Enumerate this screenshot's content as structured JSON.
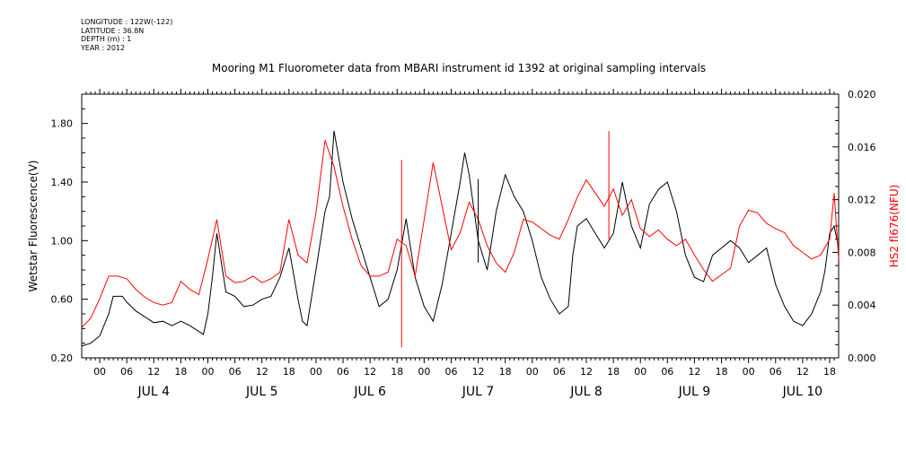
{
  "header": {
    "longitude": "LONGITUDE : 122W(-122)",
    "latitude": "LATITUDE : 36.8N",
    "depth": "DEPTH (m) : 1",
    "year": "YEAR : 2012"
  },
  "chart_data": {
    "type": "line",
    "title": "Mooring M1 Fluorometer data from MBARI instrument id 1392 at original sampling intervals",
    "xlabel": "",
    "ylabel": "Wetstar Fluorescence(V)",
    "y2label": "HS2 fl676(NFU)",
    "xlim": [
      "2012-07-03T20:00",
      "2012-07-10T20:00"
    ],
    "ylim": [
      0.2,
      2.0
    ],
    "y2lim": [
      0.0,
      0.02
    ],
    "y_ticks": [
      "0.20",
      "0.60",
      "1.00",
      "1.40",
      "1.80"
    ],
    "y2_ticks": [
      "0.000",
      "0.004",
      "0.008",
      "0.012",
      "0.016",
      "0.020"
    ],
    "x_hour_ticks": [
      "00",
      "06",
      "12",
      "18",
      "00",
      "06",
      "12",
      "18",
      "00",
      "06",
      "12",
      "18",
      "00",
      "06",
      "12",
      "18",
      "00",
      "06",
      "12",
      "18",
      "00",
      "06",
      "12",
      "18",
      "00",
      "06",
      "12",
      "18"
    ],
    "x_day_labels": [
      "JUL 4",
      "JUL 5",
      "JUL 6",
      "JUL 7",
      "JUL 8",
      "JUL 9",
      "JUL 10"
    ],
    "grid": false,
    "series_colors": [
      "#000000",
      "#ff0000"
    ],
    "series": [
      {
        "axis": "left",
        "x": [
          "2012-07-03T20:00",
          "2012-07-03T22:00",
          "2012-07-04T00:00",
          "2012-07-04T02:00",
          "2012-07-04T03:00",
          "2012-07-04T05:00",
          "2012-07-04T06:00",
          "2012-07-04T08:00",
          "2012-07-04T10:00",
          "2012-07-04T12:00",
          "2012-07-04T14:00",
          "2012-07-04T16:00",
          "2012-07-04T18:00",
          "2012-07-04T20:00",
          "2012-07-04T22:00",
          "2012-07-04T23:00",
          "2012-07-05T00:00",
          "2012-07-05T01:00",
          "2012-07-05T02:00",
          "2012-07-05T04:00",
          "2012-07-05T06:00",
          "2012-07-05T08:00",
          "2012-07-05T10:00",
          "2012-07-05T12:00",
          "2012-07-05T14:00",
          "2012-07-05T16:00",
          "2012-07-05T18:00",
          "2012-07-05T20:00",
          "2012-07-05T21:00",
          "2012-07-05T22:00",
          "2012-07-06T00:00",
          "2012-07-06T02:00",
          "2012-07-06T03:00",
          "2012-07-06T04:00",
          "2012-07-06T06:00",
          "2012-07-06T08:00",
          "2012-07-06T10:00",
          "2012-07-06T12:00",
          "2012-07-06T13:00",
          "2012-07-06T14:00",
          "2012-07-06T16:00",
          "2012-07-06T18:00",
          "2012-07-06T20:00",
          "2012-07-06T22:00",
          "2012-07-07T00:00",
          "2012-07-07T02:00",
          "2012-07-07T04:00",
          "2012-07-07T06:00",
          "2012-07-07T08:00",
          "2012-07-07T09:00",
          "2012-07-07T10:00",
          "2012-07-07T12:00",
          "2012-07-07T14:00",
          "2012-07-07T16:00",
          "2012-07-07T18:00",
          "2012-07-07T20:00",
          "2012-07-07T22:00",
          "2012-07-08T00:00",
          "2012-07-08T02:00",
          "2012-07-08T04:00",
          "2012-07-08T06:00",
          "2012-07-08T08:00",
          "2012-07-08T09:00",
          "2012-07-08T10:00",
          "2012-07-08T12:00",
          "2012-07-08T14:00",
          "2012-07-08T16:00",
          "2012-07-08T18:00",
          "2012-07-08T20:00",
          "2012-07-08T22:00",
          "2012-07-09T00:00",
          "2012-07-09T02:00",
          "2012-07-09T04:00",
          "2012-07-09T06:00",
          "2012-07-09T08:00",
          "2012-07-09T10:00",
          "2012-07-09T12:00",
          "2012-07-09T14:00",
          "2012-07-09T16:00",
          "2012-07-09T18:00",
          "2012-07-09T20:00",
          "2012-07-09T22:00",
          "2012-07-10T00:00",
          "2012-07-10T02:00",
          "2012-07-10T04:00",
          "2012-07-10T06:00",
          "2012-07-10T08:00",
          "2012-07-10T10:00",
          "2012-07-10T12:00",
          "2012-07-10T14:00",
          "2012-07-10T16:00",
          "2012-07-10T17:00",
          "2012-07-10T18:00",
          "2012-07-10T19:00",
          "2012-07-10T20:00"
        ],
        "values": [
          0.28,
          0.3,
          0.35,
          0.5,
          0.62,
          0.62,
          0.58,
          0.52,
          0.48,
          0.44,
          0.45,
          0.42,
          0.45,
          0.42,
          0.38,
          0.36,
          0.5,
          0.75,
          1.05,
          0.65,
          0.62,
          0.55,
          0.56,
          0.6,
          0.62,
          0.75,
          0.95,
          0.6,
          0.45,
          0.42,
          0.8,
          1.2,
          1.3,
          1.75,
          1.4,
          1.15,
          0.95,
          0.75,
          0.65,
          0.55,
          0.6,
          0.8,
          1.15,
          0.75,
          0.55,
          0.45,
          0.7,
          1.05,
          1.4,
          1.6,
          1.45,
          1.0,
          0.8,
          1.2,
          1.45,
          1.3,
          1.2,
          1.0,
          0.75,
          0.6,
          0.5,
          0.55,
          0.9,
          1.1,
          1.15,
          1.05,
          0.95,
          1.05,
          1.4,
          1.1,
          0.95,
          1.25,
          1.35,
          1.4,
          1.2,
          0.9,
          0.75,
          0.72,
          0.9,
          0.95,
          1.0,
          0.95,
          0.85,
          0.9,
          0.95,
          0.7,
          0.55,
          0.45,
          0.42,
          0.5,
          0.65,
          0.8,
          1.05,
          1.1,
          0.95
        ]
      },
      {
        "axis": "right",
        "x": [
          "2012-07-03T20:00",
          "2012-07-03T22:00",
          "2012-07-04T00:00",
          "2012-07-04T02:00",
          "2012-07-04T04:00",
          "2012-07-04T06:00",
          "2012-07-04T08:00",
          "2012-07-04T10:00",
          "2012-07-04T12:00",
          "2012-07-04T14:00",
          "2012-07-04T16:00",
          "2012-07-04T18:00",
          "2012-07-04T20:00",
          "2012-07-04T22:00",
          "2012-07-05T00:00",
          "2012-07-05T02:00",
          "2012-07-05T04:00",
          "2012-07-05T06:00",
          "2012-07-05T08:00",
          "2012-07-05T10:00",
          "2012-07-05T12:00",
          "2012-07-05T14:00",
          "2012-07-05T16:00",
          "2012-07-05T18:00",
          "2012-07-05T20:00",
          "2012-07-05T22:00",
          "2012-07-06T00:00",
          "2012-07-06T02:00",
          "2012-07-06T04:00",
          "2012-07-06T06:00",
          "2012-07-06T08:00",
          "2012-07-06T10:00",
          "2012-07-06T12:00",
          "2012-07-06T14:00",
          "2012-07-06T16:00",
          "2012-07-06T18:00",
          "2012-07-06T20:00",
          "2012-07-06T22:00",
          "2012-07-07T00:00",
          "2012-07-07T02:00",
          "2012-07-07T04:00",
          "2012-07-07T06:00",
          "2012-07-07T08:00",
          "2012-07-07T10:00",
          "2012-07-07T12:00",
          "2012-07-07T14:00",
          "2012-07-07T16:00",
          "2012-07-07T18:00",
          "2012-07-07T20:00",
          "2012-07-07T22:00",
          "2012-07-08T00:00",
          "2012-07-08T02:00",
          "2012-07-08T04:00",
          "2012-07-08T06:00",
          "2012-07-08T08:00",
          "2012-07-08T10:00",
          "2012-07-08T12:00",
          "2012-07-08T14:00",
          "2012-07-08T16:00",
          "2012-07-08T18:00",
          "2012-07-08T20:00",
          "2012-07-08T22:00",
          "2012-07-09T00:00",
          "2012-07-09T02:00",
          "2012-07-09T04:00",
          "2012-07-09T06:00",
          "2012-07-09T08:00",
          "2012-07-09T10:00",
          "2012-07-09T12:00",
          "2012-07-09T14:00",
          "2012-07-09T16:00",
          "2012-07-09T18:00",
          "2012-07-09T20:00",
          "2012-07-09T22:00",
          "2012-07-10T00:00",
          "2012-07-10T02:00",
          "2012-07-10T04:00",
          "2012-07-10T06:00",
          "2012-07-10T08:00",
          "2012-07-10T10:00",
          "2012-07-10T12:00",
          "2012-07-10T14:00",
          "2012-07-10T16:00",
          "2012-07-10T18:00",
          "2012-07-10T19:00",
          "2012-07-10T20:00"
        ],
        "values": [
          0.0023,
          0.003,
          0.0045,
          0.0062,
          0.0062,
          0.006,
          0.0052,
          0.0046,
          0.0042,
          0.004,
          0.0042,
          0.0058,
          0.0052,
          0.0048,
          0.0075,
          0.0105,
          0.0062,
          0.0057,
          0.0058,
          0.0062,
          0.0057,
          0.006,
          0.0065,
          0.0105,
          0.0078,
          0.0072,
          0.011,
          0.0165,
          0.0145,
          0.0115,
          0.009,
          0.007,
          0.0062,
          0.0062,
          0.0065,
          0.009,
          0.0085,
          0.0062,
          0.0105,
          0.0148,
          0.0115,
          0.0082,
          0.0095,
          0.0118,
          0.0105,
          0.0085,
          0.0072,
          0.0065,
          0.008,
          0.0105,
          0.0103,
          0.0098,
          0.0093,
          0.009,
          0.0105,
          0.0122,
          0.0135,
          0.0125,
          0.0115,
          0.0128,
          0.0108,
          0.012,
          0.0098,
          0.0092,
          0.0097,
          0.009,
          0.0085,
          0.009,
          0.0078,
          0.0067,
          0.0058,
          0.0063,
          0.0068,
          0.01,
          0.0112,
          0.011,
          0.0102,
          0.0098,
          0.0095,
          0.0085,
          0.008,
          0.0075,
          0.0078,
          0.009,
          0.0125,
          0.0075
        ]
      }
    ],
    "spikes": [
      {
        "axis": "left",
        "x": "2012-07-07T12:00",
        "min": 0.85,
        "max": 1.42
      },
      {
        "axis": "right",
        "x": "2012-07-06T19:00",
        "min": 0.0008,
        "max": 0.015
      },
      {
        "axis": "right",
        "x": "2012-07-08T17:00",
        "min": 0.009,
        "max": 0.0172
      }
    ]
  }
}
